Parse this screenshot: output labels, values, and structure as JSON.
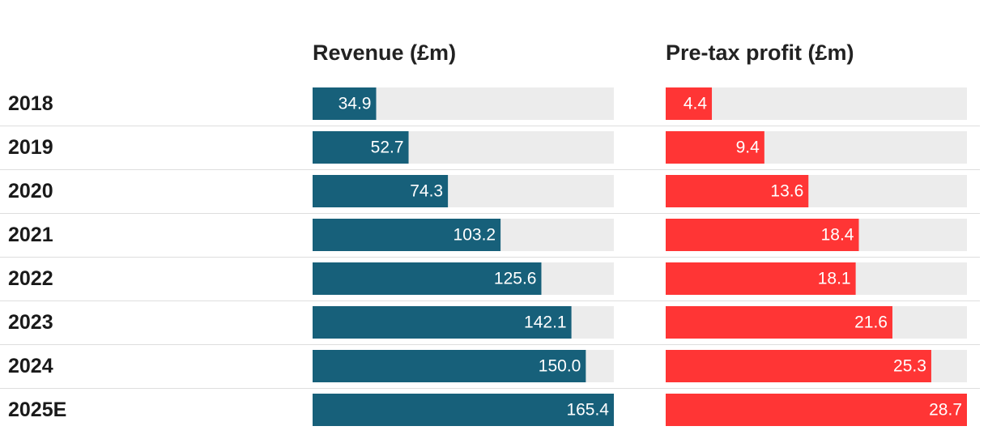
{
  "chart_data": {
    "type": "bar",
    "orientation": "horizontal",
    "categories": [
      "2018",
      "2019",
      "2020",
      "2021",
      "2022",
      "2023",
      "2024",
      "2025E"
    ],
    "series": [
      {
        "name": "Revenue (£m)",
        "color": "#17607a",
        "max": 165.4,
        "values": [
          34.9,
          52.7,
          74.3,
          103.2,
          125.6,
          142.1,
          150.0,
          165.4
        ],
        "labels": [
          "34.9",
          "52.7",
          "74.3",
          "103.2",
          "125.6",
          "142.1",
          "150.0",
          "165.4"
        ]
      },
      {
        "name": "Pre-tax profit (£m)",
        "color": "#ff3535",
        "max": 28.7,
        "values": [
          4.4,
          9.4,
          13.6,
          18.4,
          18.1,
          21.6,
          25.3,
          28.7
        ],
        "labels": [
          "4.4",
          "9.4",
          "13.6",
          "18.4",
          "18.1",
          "21.6",
          "25.3",
          "28.7"
        ]
      }
    ],
    "track_color": "#ececec",
    "legend": "none",
    "grid": false
  }
}
